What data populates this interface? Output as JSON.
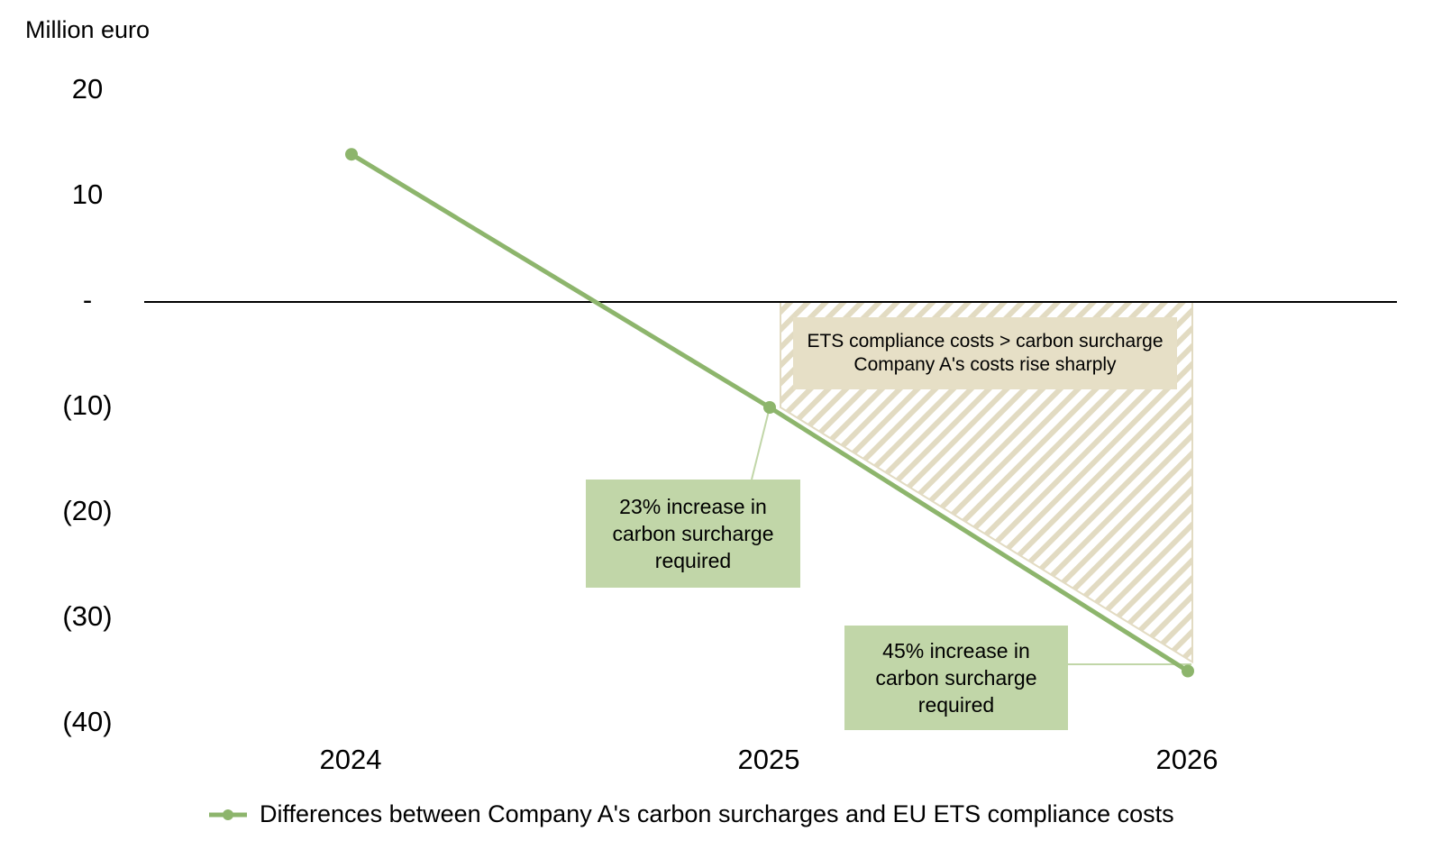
{
  "chart_data": {
    "type": "line",
    "ylabel": "Million euro",
    "ylim": [
      -40,
      20
    ],
    "yticks": [
      {
        "value": 20,
        "label": "20"
      },
      {
        "value": 10,
        "label": "10"
      },
      {
        "value": 0,
        "label": "-"
      },
      {
        "value": -10,
        "label": "(10)"
      },
      {
        "value": -20,
        "label": "(20)"
      },
      {
        "value": -30,
        "label": "(30)"
      },
      {
        "value": -40,
        "label": "(40)"
      }
    ],
    "categories": [
      "2024",
      "2025",
      "2026"
    ],
    "series": [
      {
        "name": "Differences between Company A's carbon surcharges and EU ETS compliance costs",
        "values": [
          14,
          -10,
          -35
        ],
        "color": "#8db56c"
      }
    ],
    "annotations": {
      "shaded_region": {
        "lines": [
          "ETS compliance costs > carbon surcharge",
          "Company A's costs rise sharply"
        ],
        "color": "#e6dfc6"
      },
      "callout_2025": {
        "category": "2025",
        "lines": [
          "23% increase in",
          "carbon surcharge",
          "required"
        ]
      },
      "callout_2026": {
        "category": "2026",
        "lines": [
          "45% increase in",
          "carbon surcharge",
          "required"
        ]
      }
    },
    "grid": false,
    "legend": "bottom"
  }
}
